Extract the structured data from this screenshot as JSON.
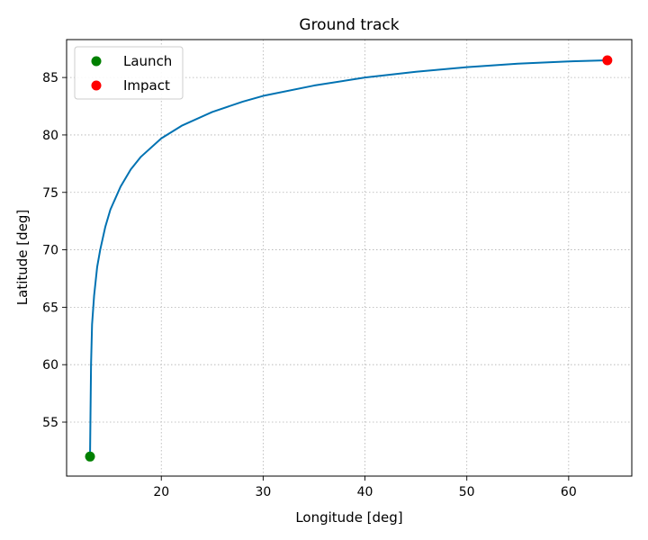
{
  "chart_data": {
    "type": "line",
    "title": "Ground track",
    "xlabel": "Longitude [deg]",
    "ylabel": "Latitude  [deg]",
    "xlim": [
      10.7,
      66.2
    ],
    "ylim": [
      50.3,
      88.3
    ],
    "xticks": [
      20,
      30,
      40,
      50,
      60
    ],
    "yticks": [
      55,
      60,
      65,
      70,
      75,
      80,
      85
    ],
    "grid": true,
    "legend_position": "top-left",
    "series": [
      {
        "color": "#0072b2",
        "x": [
          13.0,
          13.05,
          13.1,
          13.2,
          13.4,
          13.7,
          14.0,
          14.5,
          15.0,
          16.0,
          17.0,
          18.0,
          20.0,
          22.0,
          25.0,
          28.0,
          30.0,
          35.0,
          40.0,
          45.0,
          50.0,
          55.0,
          60.0,
          63.8
        ],
        "y": [
          52.0,
          56.0,
          60.0,
          63.5,
          66.0,
          68.5,
          70.0,
          72.0,
          73.5,
          75.5,
          77.0,
          78.1,
          79.7,
          80.8,
          82.0,
          82.9,
          83.4,
          84.3,
          85.0,
          85.5,
          85.9,
          86.2,
          86.4,
          86.5
        ]
      }
    ],
    "points": [
      {
        "name": "Launch",
        "x": 13.0,
        "y": 52.0,
        "color": "#008000"
      },
      {
        "name": "Impact",
        "x": 63.8,
        "y": 86.5,
        "color": "#ff0000"
      }
    ]
  }
}
